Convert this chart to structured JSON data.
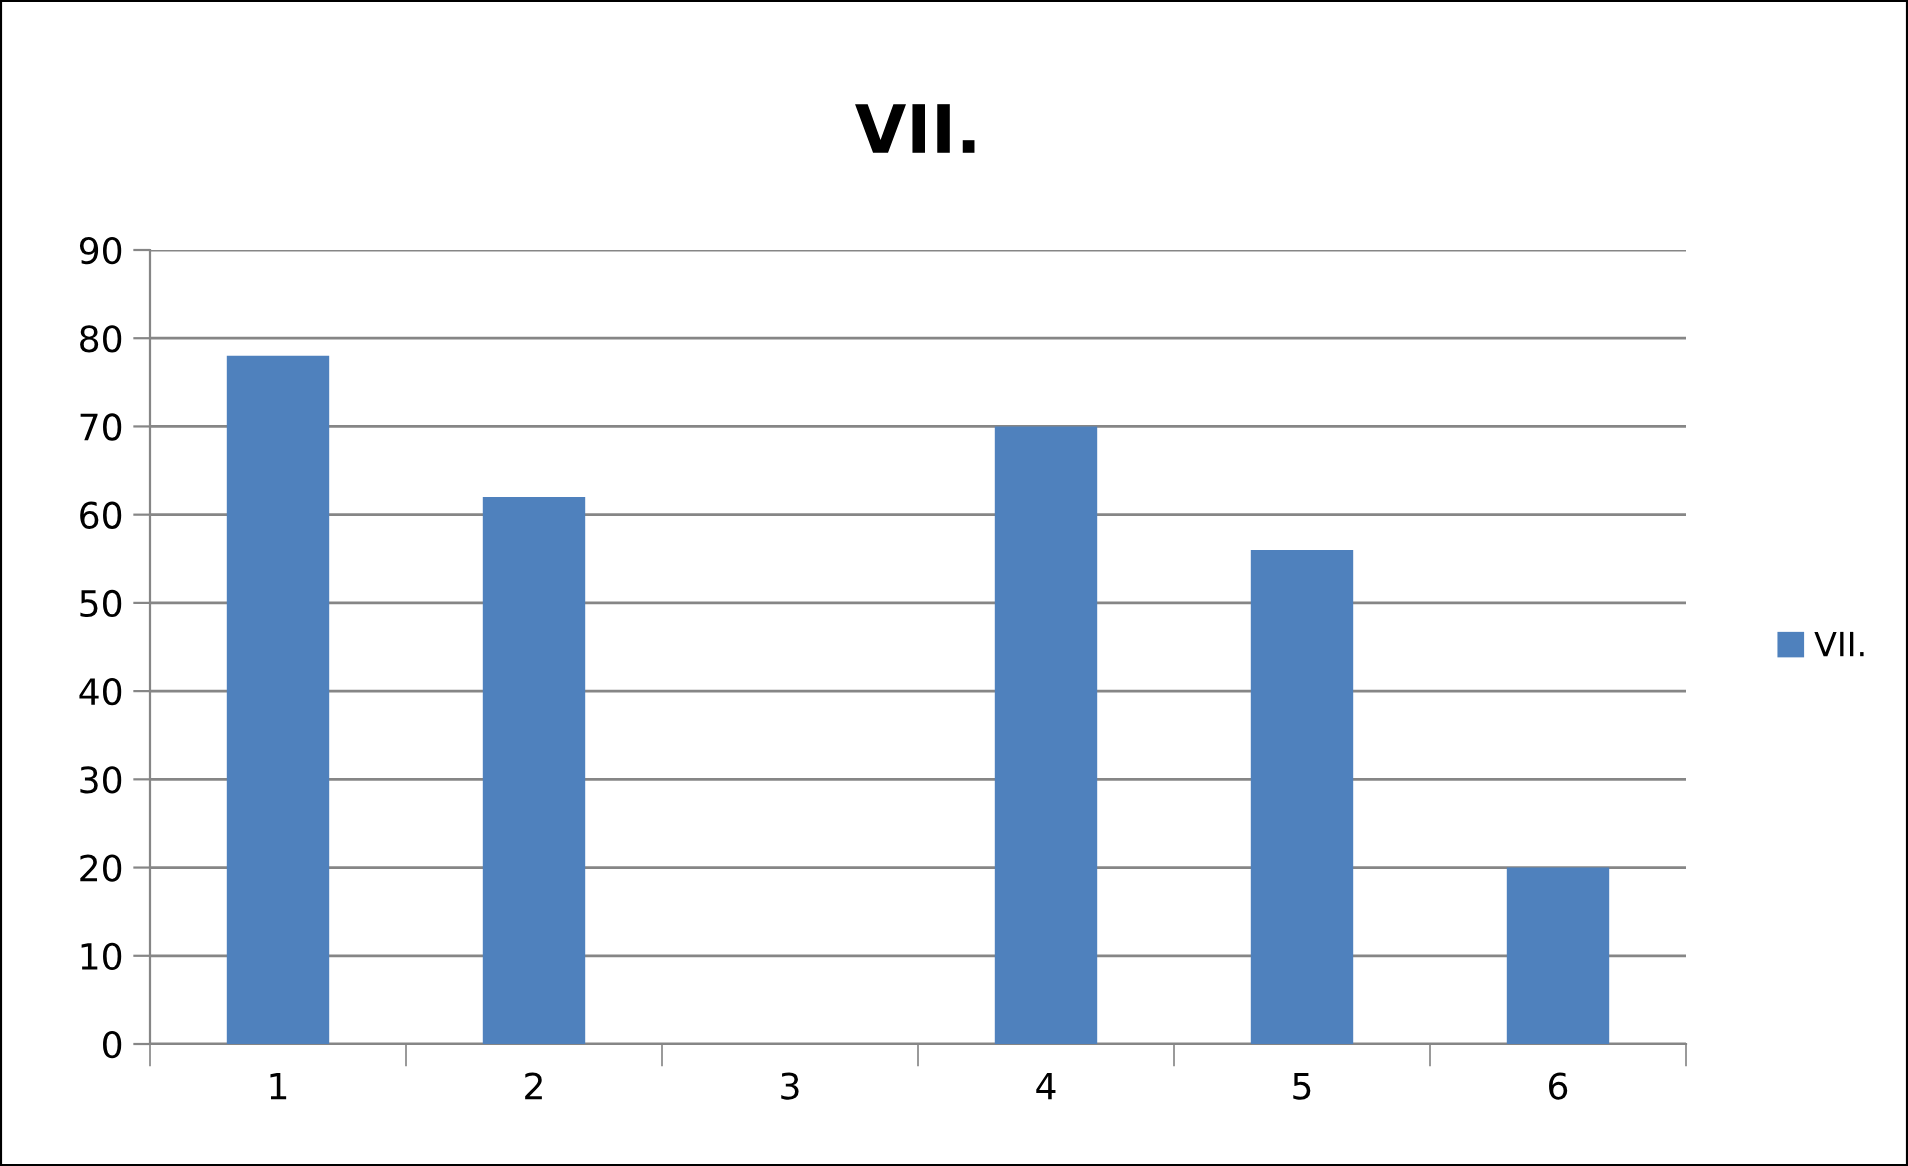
{
  "chart_data": {
    "type": "bar",
    "title": "VII.",
    "categories": [
      "1",
      "2",
      "3",
      "4",
      "5",
      "6"
    ],
    "series": [
      {
        "name": "VII.",
        "color": "#4f81bd",
        "values": [
          78,
          62,
          null,
          70,
          56,
          20
        ]
      }
    ],
    "ylim": [
      0,
      90
    ],
    "yticks": [
      0,
      10,
      20,
      30,
      40,
      50,
      60,
      70,
      80,
      90
    ],
    "grid": "y",
    "legend": "right"
  }
}
